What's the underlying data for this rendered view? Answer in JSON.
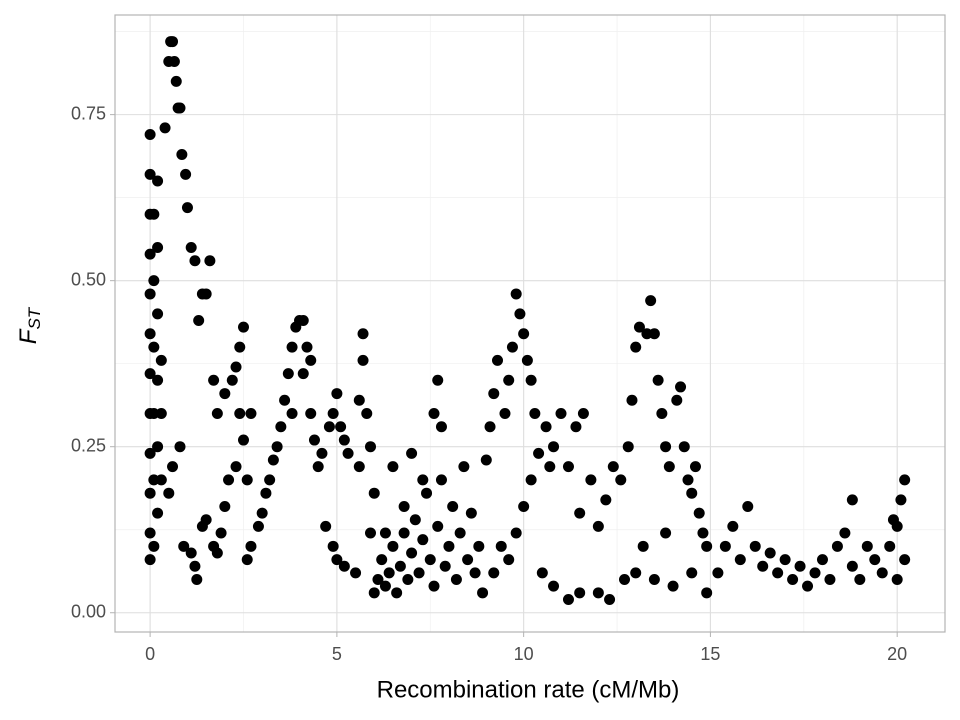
{
  "chart_data": {
    "type": "scatter",
    "xlabel": "Recombination rate (cM/Mb)",
    "ylabel": "F",
    "ylabel_sub": "ST",
    "color": "#000000",
    "grid": true,
    "xlim": [
      -0.94,
      21.28
    ],
    "ylim": [
      -0.029,
      0.9
    ],
    "xticks": [
      0,
      5,
      10,
      15,
      20
    ],
    "yticks": [
      {
        "value": 0,
        "label": "0.00"
      },
      0.25,
      {
        "value": 0.5,
        "label": "0.50"
      },
      0.75
    ],
    "xminor": [
      2.5,
      7.5,
      12.5,
      17.5
    ],
    "yminor": [
      0.125,
      0.375,
      0.625,
      0.875
    ],
    "x": [
      0,
      0,
      0,
      0,
      0,
      0,
      0,
      0,
      0,
      0,
      0,
      0,
      0.1,
      0.1,
      0.1,
      0.1,
      0.1,
      0.1,
      0.2,
      0.2,
      0.2,
      0.2,
      0.2,
      0.2,
      0.3,
      0.3,
      0.3,
      0.4,
      0.5,
      0.55,
      0.6,
      0.65,
      0.7,
      0.75,
      0.8,
      0.85,
      0.95,
      1.0,
      1.1,
      1.2,
      1.4,
      1.3,
      1.6,
      1.5,
      0.5,
      0.6,
      0.8,
      0.9,
      1.1,
      1.2,
      1.25,
      1.4,
      1.5,
      1.7,
      1.8,
      1.9,
      2.0,
      2.1,
      1.7,
      1.8,
      2.0,
      2.2,
      2.3,
      2.4,
      2.5,
      2.4,
      2.5,
      2.6,
      2.7,
      2.3,
      2.6,
      2.7,
      2.9,
      3.0,
      3.1,
      3.2,
      3.3,
      3.4,
      3.5,
      3.6,
      3.7,
      3.8,
      3.9,
      4.0,
      4.1,
      4.2,
      4.3,
      4.1,
      3.8,
      4.3,
      4.4,
      4.5,
      4.6,
      4.8,
      4.9,
      5.0,
      5.1,
      5.2,
      5.3,
      4.7,
      4.9,
      5.0,
      5.2,
      5.5,
      5.6,
      5.6,
      5.7,
      5.7,
      5.8,
      5.9,
      6.0,
      5.9,
      6.0,
      6.1,
      6.2,
      6.3,
      6.4,
      6.5,
      6.6,
      6.7,
      6.8,
      6.9,
      7.0,
      7.1,
      7.2,
      7.3,
      7.4,
      7.5,
      7.6,
      7.7,
      7.8,
      7.9,
      8.0,
      8.1,
      8.2,
      8.3,
      8.4,
      8.5,
      8.6,
      8.7,
      8.8,
      8.9,
      6.3,
      6.8,
      7.3,
      6.5,
      7.0,
      7.7,
      7.8,
      7.6,
      9.0,
      9.1,
      9.2,
      9.3,
      9.5,
      9.6,
      9.7,
      9.8,
      9.9,
      10.0,
      10.1,
      10.2,
      10.3,
      9.4,
      9.6,
      9.8,
      10.0,
      10.2,
      10.4,
      10.6,
      10.7,
      10.8,
      11.0,
      11.2,
      11.4,
      11.6,
      11.8,
      11.5,
      12.0,
      12.2,
      9.2,
      10.5,
      10.8,
      11.2,
      11.5,
      12.0,
      12.3,
      12.4,
      12.6,
      12.8,
      12.9,
      13.0,
      13.1,
      13.3,
      13.4,
      13.5,
      13.6,
      13.7,
      13.8,
      13.9,
      14.1,
      14.2,
      14.3,
      14.4,
      14.5,
      14.6,
      14.7,
      14.8,
      14.9,
      12.7,
      13.0,
      13.5,
      14.0,
      14.5,
      14.9,
      13.2,
      13.8,
      15.2,
      15.4,
      15.6,
      15.8,
      16.0,
      16.2,
      16.4,
      16.6,
      16.8,
      17.0,
      17.2,
      17.4,
      17.6,
      17.8,
      18.0,
      18.2,
      18.4,
      18.6,
      18.8,
      18.8,
      19.0,
      19.2,
      19.4,
      19.6,
      19.8,
      20.0,
      20.1,
      20.2,
      20.2,
      20.0,
      19.9
    ],
    "values": [
      0.08,
      0.12,
      0.18,
      0.24,
      0.3,
      0.36,
      0.42,
      0.48,
      0.54,
      0.6,
      0.66,
      0.72,
      0.1,
      0.2,
      0.3,
      0.4,
      0.5,
      0.6,
      0.15,
      0.25,
      0.35,
      0.45,
      0.55,
      0.65,
      0.2,
      0.3,
      0.38,
      0.73,
      0.83,
      0.86,
      0.86,
      0.83,
      0.8,
      0.76,
      0.76,
      0.69,
      0.66,
      0.61,
      0.55,
      0.53,
      0.48,
      0.44,
      0.53,
      0.48,
      0.18,
      0.22,
      0.25,
      0.1,
      0.09,
      0.07,
      0.05,
      0.13,
      0.14,
      0.1,
      0.09,
      0.12,
      0.16,
      0.2,
      0.35,
      0.3,
      0.33,
      0.35,
      0.37,
      0.4,
      0.43,
      0.3,
      0.26,
      0.2,
      0.3,
      0.22,
      0.08,
      0.1,
      0.13,
      0.15,
      0.18,
      0.2,
      0.23,
      0.25,
      0.28,
      0.32,
      0.36,
      0.4,
      0.43,
      0.44,
      0.44,
      0.4,
      0.38,
      0.36,
      0.3,
      0.3,
      0.26,
      0.22,
      0.24,
      0.28,
      0.3,
      0.33,
      0.28,
      0.26,
      0.24,
      0.13,
      0.1,
      0.08,
      0.07,
      0.06,
      0.22,
      0.32,
      0.42,
      0.38,
      0.3,
      0.25,
      0.18,
      0.12,
      0.03,
      0.05,
      0.08,
      0.04,
      0.06,
      0.1,
      0.03,
      0.07,
      0.12,
      0.05,
      0.09,
      0.14,
      0.06,
      0.11,
      0.18,
      0.08,
      0.04,
      0.13,
      0.2,
      0.07,
      0.1,
      0.16,
      0.05,
      0.12,
      0.22,
      0.08,
      0.15,
      0.06,
      0.1,
      0.03,
      0.12,
      0.16,
      0.2,
      0.22,
      0.24,
      0.35,
      0.28,
      0.3,
      0.23,
      0.28,
      0.33,
      0.38,
      0.3,
      0.35,
      0.4,
      0.48,
      0.45,
      0.42,
      0.38,
      0.35,
      0.3,
      0.1,
      0.08,
      0.12,
      0.16,
      0.2,
      0.24,
      0.28,
      0.22,
      0.25,
      0.3,
      0.22,
      0.28,
      0.3,
      0.2,
      0.15,
      0.13,
      0.17,
      0.06,
      0.06,
      0.04,
      0.02,
      0.03,
      0.03,
      0.02,
      0.22,
      0.2,
      0.25,
      0.32,
      0.4,
      0.43,
      0.42,
      0.47,
      0.42,
      0.35,
      0.3,
      0.25,
      0.22,
      0.32,
      0.34,
      0.25,
      0.2,
      0.18,
      0.22,
      0.15,
      0.12,
      0.1,
      0.05,
      0.06,
      0.05,
      0.04,
      0.06,
      0.03,
      0.1,
      0.12,
      0.06,
      0.1,
      0.13,
      0.08,
      0.16,
      0.1,
      0.07,
      0.09,
      0.06,
      0.08,
      0.05,
      0.07,
      0.04,
      0.06,
      0.08,
      0.05,
      0.1,
      0.12,
      0.17,
      0.07,
      0.05,
      0.1,
      0.08,
      0.06,
      0.1,
      0.13,
      0.17,
      0.2,
      0.08,
      0.05,
      0.14
    ]
  }
}
